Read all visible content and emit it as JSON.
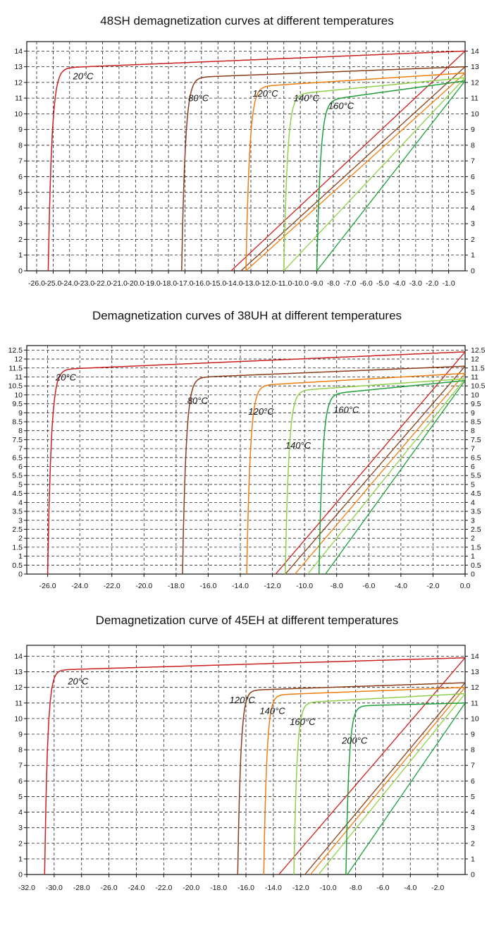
{
  "chart_data": [
    {
      "type": "line",
      "title": "48SH demagnetization curves at different temperatures",
      "xlabel": "",
      "ylabel": "",
      "xlim": [
        -26.6,
        0.0
      ],
      "ylim": [
        0,
        14.6
      ],
      "grid": true,
      "x_tick_labels": [
        "-26.0",
        "-25.0",
        "-24.0",
        "-23.0",
        "-22.0",
        "-21.0",
        "-20.0",
        "-19.0",
        "-18.0",
        "-17.0",
        "-16.0",
        "-15.0",
        "-14.0",
        "-13.0",
        "-12.0",
        "-11.0",
        "-10.0",
        "-9.0",
        "-8.0",
        "-7.0",
        "-6.0",
        "-5.0",
        "-4.0",
        "-3.0",
        "-2.0",
        "-1.0"
      ],
      "y_tick_labels": [
        "0",
        "1",
        "2",
        "3",
        "4",
        "5",
        "6",
        "7",
        "8",
        "9",
        "10",
        "11",
        "12",
        "13",
        "14"
      ],
      "series": [
        {
          "name": "20°C",
          "color": "#cc1f1f",
          "Br": 14.0,
          "Hcb": -14.2,
          "Hcj": -25.3,
          "knee": 12.9,
          "label_at": [
            -23.8,
            12.2
          ]
        },
        {
          "name": "80°C",
          "color": "#8a3e1a",
          "Br": 13.0,
          "Hcb": -13.6,
          "Hcj": -17.2,
          "knee": 12.3,
          "label_at": [
            -16.8,
            10.8
          ]
        },
        {
          "name": "120°C",
          "color": "#f07d10",
          "Br": 12.6,
          "Hcb": -13.3,
          "Hcj": -13.3,
          "knee": 11.7,
          "label_at": [
            -12.9,
            11.1
          ]
        },
        {
          "name": "140°C",
          "color": "#8fd14a",
          "Br": 12.3,
          "Hcb": -11.0,
          "Hcj": -11.0,
          "knee": 11.2,
          "label_at": [
            -10.4,
            10.8
          ]
        },
        {
          "name": "160°C",
          "color": "#1fa03a",
          "Br": 12.1,
          "Hcb": -9.0,
          "Hcj": -9.0,
          "knee": 10.8,
          "label_at": [
            -8.3,
            10.3
          ]
        }
      ]
    },
    {
      "type": "line",
      "title": "Demagnetization curves of 38UH at different temperatures",
      "xlabel": "",
      "ylabel": "",
      "xlim": [
        -27.3,
        0.0
      ],
      "ylim": [
        0,
        12.75
      ],
      "grid": true,
      "x_tick_labels": [
        "-26.0",
        "-24.0",
        "-22.0",
        "-20.0",
        "-18.0",
        "-16.0",
        "-14.0",
        "-12.0",
        "-10.0",
        "-8.0",
        "-6.0",
        "-4.0",
        "-2.0",
        "0.0"
      ],
      "y_tick_labels": [
        "0",
        "0.5",
        "1",
        "1.5",
        "2",
        "2.5",
        "3",
        "3.5",
        "4",
        "4.5",
        "5",
        "5.5",
        "6",
        "6.5",
        "7",
        "7.5",
        "8",
        "8.5",
        "9",
        "9.5",
        "10",
        "10.5",
        "11",
        "11.5",
        "12",
        "12.5"
      ],
      "series": [
        {
          "name": "20°C",
          "color": "#cc1f1f",
          "Br": 12.4,
          "Hcb": -11.8,
          "Hcj": -26.0,
          "knee": 11.4,
          "label_at": [
            -25.5,
            10.8
          ]
        },
        {
          "name": "80°C",
          "color": "#8a3e1a",
          "Br": 11.6,
          "Hcb": -11.2,
          "Hcj": -17.6,
          "knee": 10.95,
          "label_at": [
            -17.3,
            9.5
          ]
        },
        {
          "name": "120°C",
          "color": "#f07d10",
          "Br": 11.2,
          "Hcb": -10.6,
          "Hcj": -13.6,
          "knee": 10.5,
          "label_at": [
            -13.5,
            8.9
          ]
        },
        {
          "name": "140°C",
          "color": "#8fd14a",
          "Br": 10.9,
          "Hcb": -9.8,
          "Hcj": -11.2,
          "knee": 10.2,
          "label_at": [
            -11.2,
            7.0
          ]
        },
        {
          "name": "160°C",
          "color": "#1fa03a",
          "Br": 10.8,
          "Hcb": -8.7,
          "Hcj": -9.1,
          "knee": 10.0,
          "label_at": [
            -8.2,
            9.0
          ]
        }
      ]
    },
    {
      "type": "line",
      "title": "Demagnetization curve of 45EH at different temperatures",
      "xlabel": "",
      "ylabel": "",
      "xlim": [
        -32.0,
        0.0
      ],
      "ylim": [
        0,
        14.7
      ],
      "grid": true,
      "x_tick_labels": [
        "-32.0",
        "-30.0",
        "-28.0",
        "-26.0",
        "-24.0",
        "-22.0",
        "-20.0",
        "-18.0",
        "-16.0",
        "-14.0",
        "-12.0",
        "-10.0",
        "-8.0",
        "-6.0",
        "-4.0",
        "-2.0"
      ],
      "y_tick_labels": [
        "0",
        "1",
        "2",
        "3",
        "4",
        "5",
        "6",
        "7",
        "8",
        "9",
        "10",
        "11",
        "12",
        "13",
        "14"
      ],
      "series": [
        {
          "name": "20°C",
          "color": "#cc1f1f",
          "Br": 13.9,
          "Hcb": -13.6,
          "Hcj": -30.7,
          "knee": 13.1,
          "label_at": [
            -29.0,
            12.2
          ]
        },
        {
          "name": "120°C",
          "color": "#8a3e1a",
          "Br": 12.3,
          "Hcb": -11.7,
          "Hcj": -16.6,
          "knee": 11.8,
          "label_at": [
            -17.2,
            11.0
          ]
        },
        {
          "name": "140°C",
          "color": "#f07d10",
          "Br": 12.0,
          "Hcb": -11.3,
          "Hcj": -14.7,
          "knee": 11.5,
          "label_at": [
            -15.0,
            10.3
          ]
        },
        {
          "name": "160°C",
          "color": "#8fd14a",
          "Br": 11.6,
          "Hcb": -10.7,
          "Hcj": -12.5,
          "knee": 11.0,
          "label_at": [
            -12.8,
            9.6
          ]
        },
        {
          "name": "200°C",
          "color": "#1fa03a",
          "Br": 11.0,
          "Hcb": -8.6,
          "Hcj": -8.7,
          "knee": 10.8,
          "label_at": [
            -9.0,
            8.4
          ]
        }
      ]
    }
  ]
}
